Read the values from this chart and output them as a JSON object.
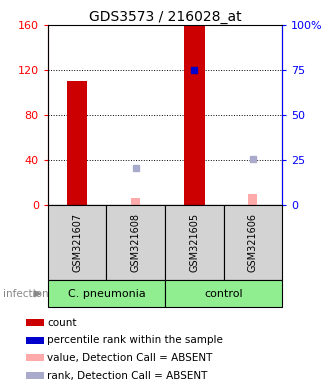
{
  "title": "GDS3573 / 216028_at",
  "samples": [
    "GSM321607",
    "GSM321608",
    "GSM321605",
    "GSM321606"
  ],
  "ylim_left": [
    0,
    160
  ],
  "ylim_right": [
    0,
    100
  ],
  "yticks_left": [
    0,
    40,
    80,
    120,
    160
  ],
  "ytick_labels_left": [
    "0",
    "40",
    "80",
    "120",
    "160"
  ],
  "yticks_right": [
    0,
    25,
    50,
    75,
    100
  ],
  "ytick_labels_right": [
    "0",
    "25",
    "50",
    "75",
    "100%"
  ],
  "count_values": [
    110,
    null,
    160,
    null
  ],
  "count_color": "#cc0000",
  "absent_value_values": [
    null,
    7,
    null,
    10
  ],
  "absent_value_color": "#ffaaaa",
  "percentile_values": [
    null,
    null,
    75,
    null
  ],
  "percentile_color": "#0000cc",
  "absent_rank_values": [
    null,
    21,
    null,
    26
  ],
  "absent_rank_color": "#aaaacc",
  "bar_width": 0.35,
  "sample_col_bg": "#d3d3d3",
  "group_spans": [
    [
      0,
      2,
      "C. pneumonia"
    ],
    [
      2,
      4,
      "control"
    ]
  ],
  "group_color": "#90ee90",
  "infection_label": "infection",
  "legend_items": [
    {
      "color": "#cc0000",
      "label": "count"
    },
    {
      "color": "#0000cc",
      "label": "percentile rank within the sample"
    },
    {
      "color": "#ffaaaa",
      "label": "value, Detection Call = ABSENT"
    },
    {
      "color": "#aaaacc",
      "label": "rank, Detection Call = ABSENT"
    }
  ],
  "title_fontsize": 10,
  "tick_fontsize": 8,
  "sample_fontsize": 7,
  "group_fontsize": 8,
  "legend_fontsize": 7.5
}
